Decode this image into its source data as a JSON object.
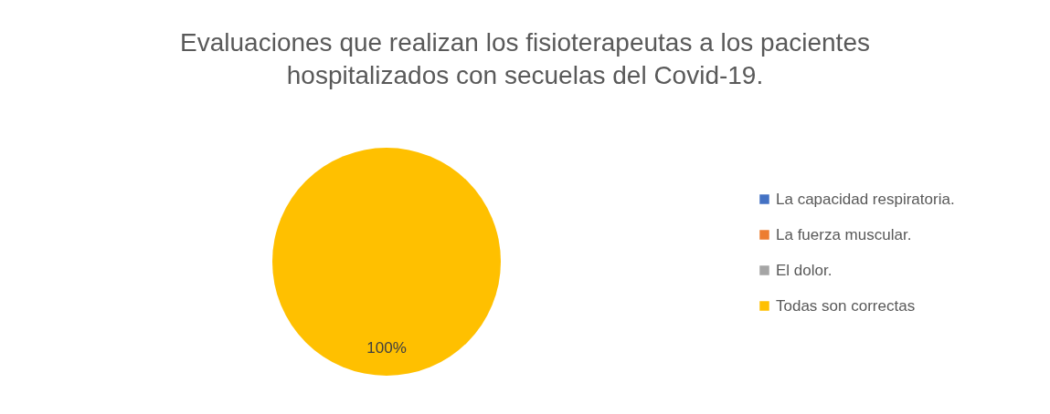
{
  "chart_data": {
    "type": "pie",
    "title": "Evaluaciones que realizan los fisioterapeutas a los pacientes hospitalizados con secuelas del Covid-19.",
    "categories": [
      "La capacidad respiratoria.",
      "La fuerza muscular.",
      "El dolor.",
      "Todas son correctas"
    ],
    "values": [
      0,
      0,
      0,
      100
    ],
    "colors": [
      "#4472c4",
      "#ed7d31",
      "#a5a5a5",
      "#ffc000"
    ],
    "value_labels": [
      null,
      null,
      null,
      "100%"
    ],
    "legend": "right"
  }
}
